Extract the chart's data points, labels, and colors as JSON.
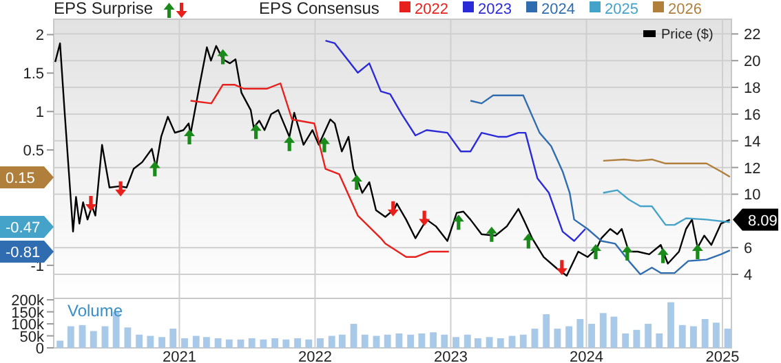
{
  "chart_data": [
    {
      "type": "line",
      "legend_title": "EPS Consensus",
      "legend": "top right",
      "grid": true,
      "tick_labels": "y",
      "annotations": [
        "EPS Surprise",
        "0.15",
        "-0.47",
        "-0.81",
        "8.09"
      ],
      "xlim": [
        "2020-01-29",
        "2025-01-25"
      ],
      "xticks": [
        {
          "value": "2021-01-01",
          "label": null
        },
        {
          "value": "2022-01-01",
          "label": null
        },
        {
          "value": "2023-01-01",
          "label": null
        },
        {
          "value": "2024-01-01",
          "label": null
        },
        {
          "value": "2025-01-01",
          "label": null
        }
      ],
      "ylim": [
        -1.43,
        2.2
      ],
      "yticks": [
        -1,
        0.5,
        1,
        1.5,
        2
      ],
      "y2lim": [
        2.2,
        23.1
      ],
      "y2ticks": [
        4,
        6,
        10,
        12,
        14,
        16,
        18,
        20,
        22
      ],
      "series": [
        {
          "name": "Price ($)",
          "color": "#000000",
          "axis": "y2",
          "x": [
            "2020-02-02",
            "2020-02-15",
            "2020-02-27",
            "2020-03-21",
            "2020-03-29",
            "2020-04-07",
            "2020-04-17",
            "2020-04-29",
            "2020-05-11",
            "2020-05-20",
            "2020-06-07",
            "2020-06-27",
            "2020-07-25",
            "2020-08-12",
            "2020-08-31",
            "2020-09-23",
            "2020-10-19",
            "2020-10-30",
            "2020-11-13",
            "2020-12-01",
            "2020-12-20",
            "2021-01-12",
            "2021-01-26",
            "2021-01-31",
            "2021-02-26",
            "2021-03-16",
            "2021-03-27",
            "2021-04-10",
            "2021-04-28",
            "2021-05-17",
            "2021-06-01",
            "2021-06-17",
            "2021-07-12",
            "2021-07-20",
            "2021-08-04",
            "2021-08-18",
            "2021-09-05",
            "2021-09-24",
            "2021-10-12",
            "2021-10-24",
            "2021-11-06",
            "2021-12-01",
            "2021-12-25",
            "2022-01-11",
            "2022-02-11",
            "2022-02-23",
            "2022-03-14",
            "2022-04-01",
            "2022-04-14",
            "2022-05-08",
            "2022-05-27",
            "2022-06-14",
            "2022-07-09",
            "2022-08-03",
            "2022-08-09",
            "2022-09-03",
            "2022-09-28",
            "2022-10-28",
            "2022-11-22",
            "2022-12-23",
            "2023-01-17",
            "2023-02-04",
            "2023-02-23",
            "2023-03-25",
            "2023-05-01",
            "2023-06-01",
            "2023-07-02",
            "2023-07-21",
            "2023-08-08",
            "2023-09-08",
            "2023-10-15",
            "2023-11-09",
            "2023-12-10",
            "2024-01-04",
            "2024-01-28",
            "2024-02-10",
            "2024-03-05",
            "2024-03-24",
            "2024-04-05",
            "2024-04-24",
            "2024-05-18",
            "2024-06-18",
            "2024-07-19",
            "2024-08-07",
            "2024-09-06",
            "2024-09-25",
            "2024-10-11",
            "2024-10-26",
            "2024-11-13",
            "2024-12-02",
            "2024-12-28",
            "2025-01-21"
          ],
          "values": [
            19.9,
            21.3,
            16.3,
            7.2,
            9.8,
            7.8,
            9.4,
            8.1,
            9.1,
            8.4,
            13.7,
            10.5,
            10.6,
            10.5,
            11.9,
            12.4,
            13.4,
            12.0,
            14.3,
            15.8,
            14.6,
            14.8,
            15.3,
            14.5,
            18.4,
            21.0,
            20.0,
            21.1,
            20.1,
            19.8,
            20.1,
            17.6,
            16.3,
            15.0,
            15.5,
            14.8,
            16.0,
            16.3,
            15.1,
            14.3,
            16.1,
            13.7,
            14.8,
            13.7,
            15.6,
            15.3,
            13.2,
            14.3,
            11.9,
            10.1,
            10.9,
            8.8,
            8.3,
            8.9,
            9.3,
            8.1,
            6.7,
            8.1,
            7.6,
            6.5,
            8.6,
            8.7,
            8.1,
            7.0,
            6.9,
            7.6,
            8.9,
            7.8,
            6.7,
            5.3,
            4.4,
            3.9,
            5.7,
            5.3,
            5.9,
            6.7,
            7.4,
            7.0,
            7.4,
            5.7,
            5.7,
            5.5,
            6.2,
            4.8,
            5.7,
            7.4,
            8.1,
            6.0,
            6.9,
            6.2,
            7.8,
            8.09
          ]
        },
        {
          "name": "2022",
          "color": "#e8201c",
          "axis": "y2",
          "x": [
            "2021-01-31",
            "2021-03-28",
            "2021-04-28",
            "2021-05-29",
            "2021-06-23",
            "2021-08-24",
            "2021-09-30",
            "2021-10-31",
            "2021-12-30",
            "2022-01-29",
            "2022-03-07",
            "2022-04-26",
            "2022-06-27",
            "2022-07-09",
            "2022-09-03",
            "2022-09-28",
            "2022-11-04",
            "2022-12-27"
          ],
          "values": [
            17.0,
            16.8,
            18.2,
            18.2,
            17.9,
            17.9,
            18.3,
            15.6,
            15.3,
            11.9,
            11.5,
            8.4,
            6.7,
            6.3,
            5.3,
            5.3,
            5.7,
            5.7
          ]
        },
        {
          "name": "2023",
          "color": "#2a2ad8",
          "axis": "y2",
          "x": [
            "2022-01-29",
            "2022-02-23",
            "2022-04-26",
            "2022-05-27",
            "2022-06-27",
            "2022-07-22",
            "2022-08-22",
            "2022-09-28",
            "2022-10-28",
            "2022-12-23",
            "2023-01-28",
            "2023-02-23",
            "2023-03-25",
            "2023-05-08",
            "2023-06-01",
            "2023-07-02",
            "2023-07-21",
            "2023-08-22",
            "2023-09-22",
            "2023-10-29",
            "2023-11-29",
            "2023-12-29"
          ],
          "values": [
            21.5,
            21.3,
            19.1,
            19.8,
            17.7,
            17.5,
            16.0,
            14.4,
            14.8,
            14.6,
            13.2,
            13.2,
            14.6,
            14.3,
            14.3,
            14.6,
            14.6,
            11.2,
            10.1,
            7.2,
            6.5,
            7.4
          ]
        },
        {
          "name": "2024",
          "color": "#2f6cb0",
          "axis": "y2",
          "x": [
            "2023-02-23",
            "2023-03-25",
            "2023-04-25",
            "2023-07-15",
            "2023-08-28",
            "2023-09-28",
            "2023-10-29",
            "2023-11-17",
            "2023-11-29",
            "2024-01-04",
            "2024-02-10",
            "2024-03-18",
            "2024-04-24",
            "2024-05-25",
            "2024-06-25",
            "2024-07-19",
            "2024-08-25",
            "2024-10-01",
            "2024-11-19",
            "2024-12-28",
            "2025-01-21"
          ],
          "values": [
            17.0,
            16.8,
            17.4,
            17.4,
            14.6,
            13.6,
            11.7,
            10.1,
            8.1,
            7.4,
            6.5,
            6.3,
            5.0,
            4.0,
            4.5,
            4.1,
            4.1,
            5.0,
            5.1,
            5.5,
            5.8
          ]
        },
        {
          "name": "2025",
          "color": "#45a2c9",
          "axis": "y2",
          "x": [
            "2024-02-15",
            "2024-03-24",
            "2024-04-24",
            "2024-05-25",
            "2024-06-25",
            "2024-08-01",
            "2024-08-25",
            "2024-09-25",
            "2024-11-19",
            "2025-01-21"
          ],
          "values": [
            10.1,
            10.3,
            9.6,
            9.1,
            9.1,
            7.7,
            7.7,
            8.2,
            8.1,
            7.9
          ]
        },
        {
          "name": "2026",
          "color": "#b07f3c",
          "axis": "y2",
          "x": [
            "2024-02-15",
            "2024-04-11",
            "2024-05-18",
            "2024-06-25",
            "2024-08-01",
            "2024-09-19",
            "2024-11-19",
            "2024-12-28",
            "2025-01-21"
          ],
          "values": [
            12.5,
            12.6,
            12.5,
            12.6,
            12.3,
            12.3,
            12.3,
            11.7,
            11.3
          ]
        },
        {
          "type": "scatter",
          "color": "#1a8a1a",
          "axis": "y2",
          "x": [
            "2020-10-27",
            "2021-01-28",
            "2021-04-28",
            "2021-07-26",
            "2021-10-24",
            "2022-01-26",
            "2022-04-23",
            "2023-01-22",
            "2023-04-21",
            "2023-07-29",
            "2024-01-26",
            "2024-04-20",
            "2024-07-25",
            "2024-10-26"
          ],
          "values": [
            11.9,
            14.3,
            20.3,
            14.7,
            13.8,
            13.7,
            10.9,
            7.9,
            7.0,
            6.5,
            5.7,
            5.6,
            5.4,
            5.7
          ]
        },
        {
          "type": "scatter",
          "color": "#e8201c",
          "axis": "y2",
          "x": [
            "2020-05-08",
            "2020-07-27",
            "2022-07-30",
            "2022-10-22",
            "2023-10-27"
          ],
          "values": [
            9.3,
            10.4,
            8.9,
            8.2,
            4.5
          ]
        }
      ]
    },
    {
      "type": "bar",
      "title": "Volume",
      "color": "#a9c9e9",
      "grid": "x",
      "xlim": [
        "2020-01-29",
        "2025-01-25"
      ],
      "xticks": [
        {
          "value": "2021-01-01",
          "label": "2021"
        },
        {
          "value": "2022-01-01",
          "label": "2022"
        },
        {
          "value": "2023-01-01",
          "label": "2023"
        },
        {
          "value": "2024-01-01",
          "label": "2024"
        },
        {
          "value": "2025-01-01",
          "label": "2025"
        }
      ],
      "ylim": [
        0,
        206000
      ],
      "yticks": [
        0,
        {
          "value": 50000,
          "label": "50k"
        },
        {
          "value": 100000,
          "label": "100k"
        },
        {
          "value": 150000,
          "label": "150k"
        },
        {
          "value": 200000,
          "label": "200k"
        }
      ],
      "x": [
        "2020-02-15",
        "2020-03-15",
        "2020-04-15",
        "2020-05-15",
        "2020-06-15",
        "2020-07-15",
        "2020-08-15",
        "2020-09-15",
        "2020-10-15",
        "2020-11-15",
        "2020-12-15",
        "2021-01-15",
        "2021-02-15",
        "2021-03-15",
        "2021-04-15",
        "2021-05-15",
        "2021-06-15",
        "2021-07-15",
        "2021-08-15",
        "2021-09-15",
        "2021-10-15",
        "2021-11-15",
        "2021-12-15",
        "2022-01-15",
        "2022-02-15",
        "2022-03-15",
        "2022-04-15",
        "2022-05-15",
        "2022-06-15",
        "2022-07-15",
        "2022-08-15",
        "2022-09-15",
        "2022-10-15",
        "2022-11-15",
        "2022-12-15",
        "2023-01-15",
        "2023-02-15",
        "2023-03-15",
        "2023-04-15",
        "2023-05-15",
        "2023-06-15",
        "2023-07-15",
        "2023-08-15",
        "2023-09-15",
        "2023-10-15",
        "2023-11-15",
        "2023-12-15",
        "2024-01-15",
        "2024-02-15",
        "2024-03-15",
        "2024-04-15",
        "2024-05-15",
        "2024-06-15",
        "2024-07-15",
        "2024-08-15",
        "2024-09-15",
        "2024-10-15",
        "2024-11-15",
        "2024-12-15",
        "2025-01-15"
      ],
      "values": [
        30000,
        90000,
        95000,
        70000,
        90000,
        150000,
        85000,
        55000,
        50000,
        45000,
        80000,
        40000,
        50000,
        45000,
        40000,
        35000,
        35000,
        40000,
        35000,
        40000,
        35000,
        40000,
        35000,
        40000,
        50000,
        55000,
        100000,
        55000,
        50000,
        55000,
        60000,
        55000,
        60000,
        65000,
        55000,
        45000,
        55000,
        40000,
        45000,
        40000,
        50000,
        55000,
        80000,
        140000,
        80000,
        90000,
        120000,
        100000,
        145000,
        130000,
        60000,
        75000,
        100000,
        60000,
        190000,
        95000,
        90000,
        120000,
        105000,
        80000
      ]
    }
  ]
}
